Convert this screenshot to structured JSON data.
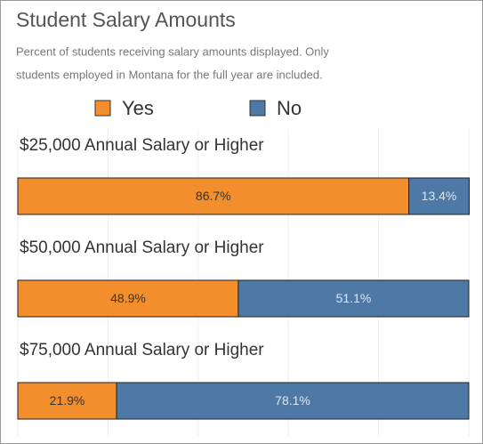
{
  "chart_data": {
    "type": "stacked_bar",
    "title": "Student Salary Amounts",
    "subtitle": [
      "Percent of students receiving salary amounts displayed.  Only",
      "students employed in Montana for the full year are included."
    ],
    "categories": [
      "$25,000 Annual Salary or Higher",
      "$50,000 Annual Salary or Higher",
      "$75,000 Annual Salary or Higher"
    ],
    "series": [
      {
        "name": "Yes",
        "color": "#f28e2b",
        "values": [
          86.7,
          48.9,
          21.9
        ],
        "value_labels": [
          "86.7%",
          "48.9%",
          "21.9%"
        ]
      },
      {
        "name": "No",
        "color": "#4e79a7",
        "values": [
          13.4,
          51.1,
          78.1
        ],
        "value_labels": [
          "13.4%",
          "51.1%",
          "78.1%"
        ]
      }
    ],
    "xlim": [
      0,
      100
    ],
    "xticks": [
      0,
      20,
      40,
      60,
      80,
      100
    ],
    "grid": true
  }
}
